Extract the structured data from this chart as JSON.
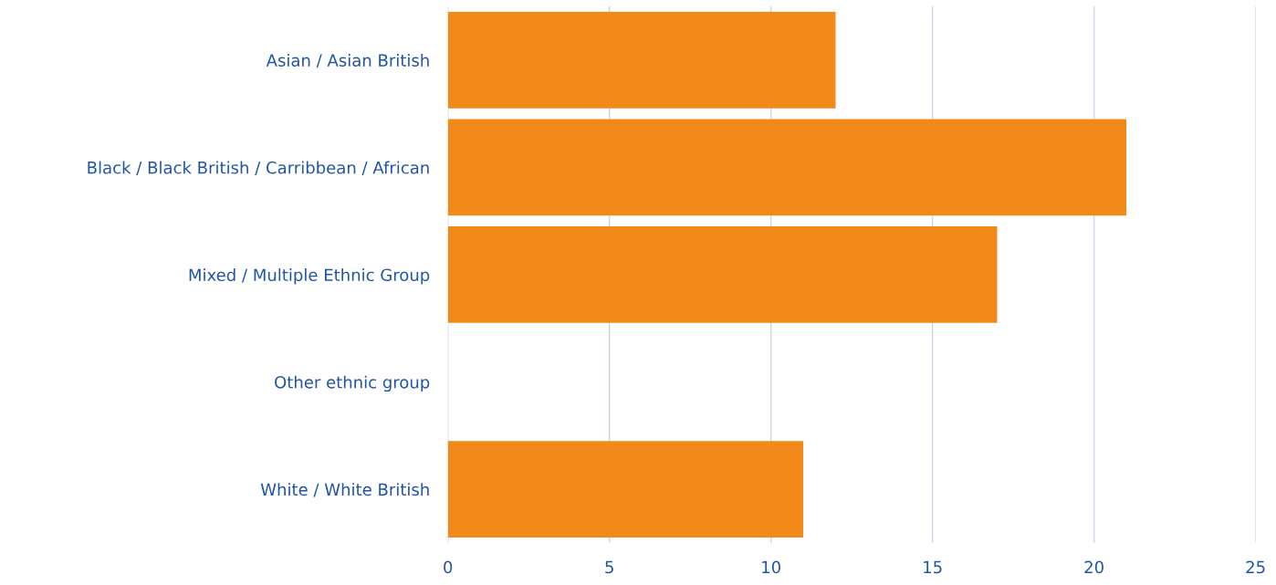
{
  "chart_data": {
    "type": "bar",
    "orientation": "horizontal",
    "categories": [
      "Asian / Asian British",
      "Black / Black British / Carribbean / African",
      "Mixed / Multiple Ethnic Group",
      "Other ethnic group",
      "White / White British"
    ],
    "values": [
      12,
      21,
      17,
      0,
      11
    ],
    "color": "#f28a1a",
    "xlim": [
      0,
      25
    ],
    "xticks": [
      0,
      5,
      10,
      15,
      20,
      25
    ],
    "grid": "x",
    "legend": false
  }
}
